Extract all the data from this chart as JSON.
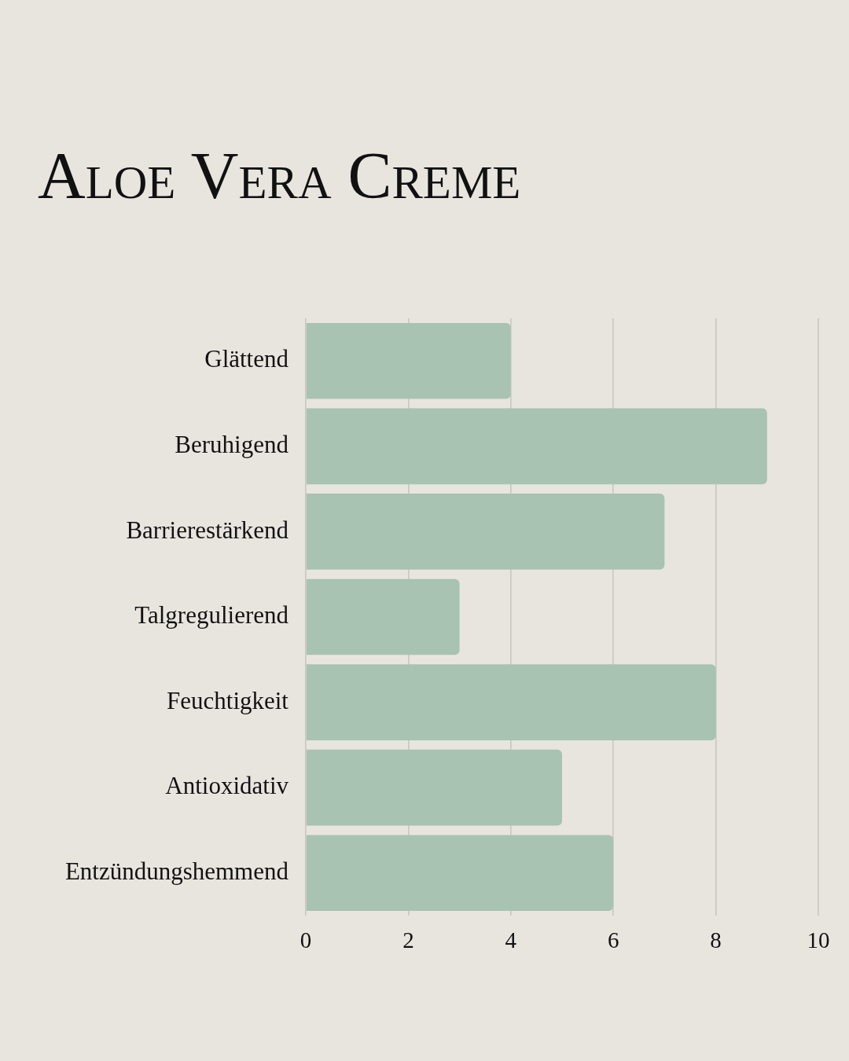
{
  "chart_data": {
    "type": "bar",
    "title": "Aloe Vera Creme",
    "orientation": "horizontal",
    "categories": [
      "Glättend",
      "Beruhigend",
      "Barrierestärkend",
      "Talgregulierend",
      "Feuchtigkeit",
      "Antioxidativ",
      "Entzündungshemmend"
    ],
    "values": [
      4,
      9,
      7,
      3,
      8,
      5,
      6
    ],
    "color": "#a8c3b1",
    "xlim": [
      0,
      10
    ],
    "xticks": [
      0,
      2,
      4,
      6,
      8,
      10
    ],
    "grid": "x"
  }
}
